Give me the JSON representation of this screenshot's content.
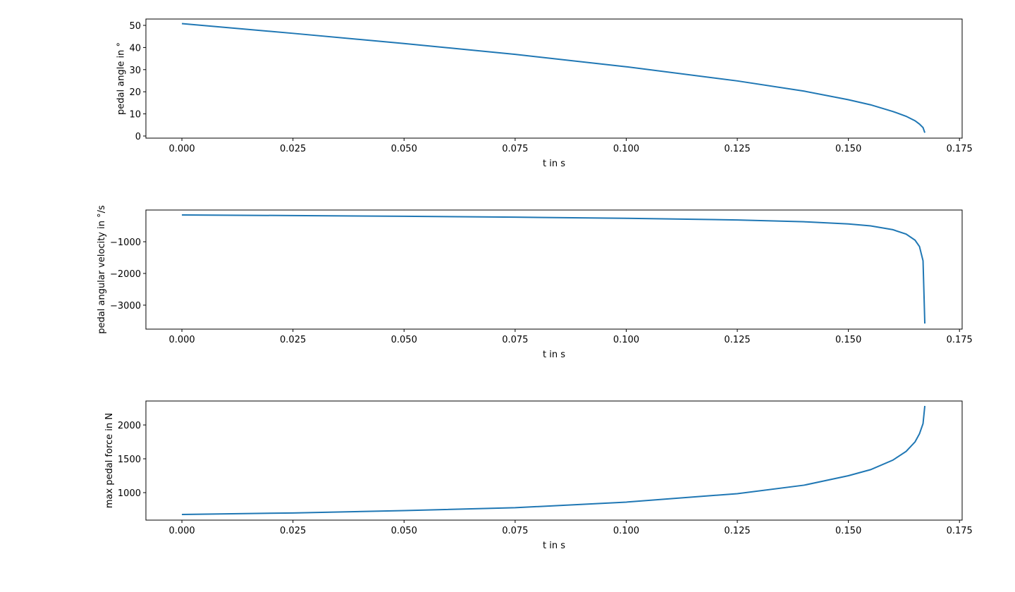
{
  "chart_data": [
    {
      "type": "line",
      "xlabel": "t in s",
      "ylabel": "pedal angle in °",
      "color": "#1f77b4",
      "x": [
        0,
        0.025,
        0.05,
        0.075,
        0.1,
        0.125,
        0.14,
        0.15,
        0.155,
        0.16,
        0.163,
        0.165,
        0.166,
        0.1668,
        0.1672
      ],
      "values": [
        50.8,
        46.4,
        41.8,
        36.9,
        31.3,
        24.9,
        20.3,
        16.4,
        14.1,
        11.1,
        8.9,
        6.9,
        5.4,
        3.8,
        1.5
      ],
      "xlim": [
        -0.0081,
        0.1756
      ],
      "ylim": [
        -0.96,
        52.87
      ],
      "xticks": [
        {
          "value": 0,
          "label": "0.000"
        },
        {
          "value": 0.025,
          "label": "0.025"
        },
        {
          "value": 0.05,
          "label": "0.050"
        },
        {
          "value": 0.075,
          "label": "0.075"
        },
        {
          "value": 0.1,
          "label": "0.100"
        },
        {
          "value": 0.125,
          "label": "0.125"
        },
        {
          "value": 0.15,
          "label": "0.150"
        },
        {
          "value": 0.175,
          "label": "0.175"
        }
      ],
      "yticks": [
        0,
        10,
        20,
        30,
        40,
        50
      ]
    },
    {
      "type": "line",
      "xlabel": "t in s",
      "ylabel": "pedal angular velocity in °/s",
      "color": "#1f77b4",
      "x": [
        0,
        0.025,
        0.05,
        0.075,
        0.1,
        0.125,
        0.14,
        0.15,
        0.155,
        0.16,
        0.163,
        0.165,
        0.166,
        0.1668,
        0.1672
      ],
      "values": [
        -156,
        -175,
        -198,
        -226,
        -262,
        -313,
        -370,
        -440,
        -500,
        -620,
        -760,
        -950,
        -1150,
        -1600,
        -3580
      ],
      "xlim": [
        -0.0081,
        0.1756
      ],
      "ylim": [
        -3756,
        0
      ],
      "xticks": [
        {
          "value": 0,
          "label": "0.000"
        },
        {
          "value": 0.025,
          "label": "0.025"
        },
        {
          "value": 0.05,
          "label": "0.050"
        },
        {
          "value": 0.075,
          "label": "0.075"
        },
        {
          "value": 0.1,
          "label": "0.100"
        },
        {
          "value": 0.125,
          "label": "0.125"
        },
        {
          "value": 0.15,
          "label": "0.150"
        },
        {
          "value": 0.175,
          "label": "0.175"
        }
      ],
      "yticks": [
        {
          "value": -3000,
          "label": "−3000"
        },
        {
          "value": -2000,
          "label": "−2000"
        },
        {
          "value": -1000,
          "label": "−1000"
        }
      ]
    },
    {
      "type": "line",
      "xlabel": "t in s",
      "ylabel": "max pedal force in N",
      "color": "#1f77b4",
      "x": [
        0,
        0.025,
        0.05,
        0.075,
        0.1,
        0.125,
        0.14,
        0.15,
        0.155,
        0.16,
        0.163,
        0.165,
        0.166,
        0.1668,
        0.1672
      ],
      "values": [
        677,
        700,
        735,
        777,
        860,
        985,
        1110,
        1250,
        1340,
        1480,
        1610,
        1750,
        1870,
        2020,
        2281
      ],
      "xlim": [
        -0.0081,
        0.1756
      ],
      "ylim": [
        594,
        2354
      ],
      "xticks": [
        {
          "value": 0,
          "label": "0.000"
        },
        {
          "value": 0.025,
          "label": "0.025"
        },
        {
          "value": 0.05,
          "label": "0.050"
        },
        {
          "value": 0.075,
          "label": "0.075"
        },
        {
          "value": 0.1,
          "label": "0.100"
        },
        {
          "value": 0.125,
          "label": "0.125"
        },
        {
          "value": 0.15,
          "label": "0.150"
        },
        {
          "value": 0.175,
          "label": "0.175"
        }
      ],
      "yticks": [
        1000,
        1500,
        2000
      ]
    }
  ]
}
